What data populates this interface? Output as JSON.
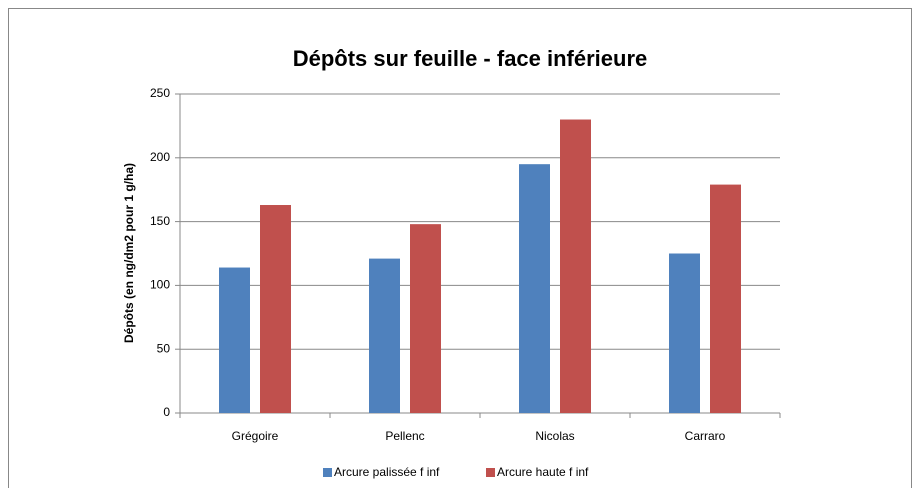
{
  "chart_data": {
    "type": "bar",
    "title": "Dépôts sur feuille - face inférieure",
    "y_label": "Dépôts (en ng/dm2 pour 1 g/ha)",
    "categories": [
      "Grégoire",
      "Pellenc",
      "Nicolas",
      "Carraro"
    ],
    "series": [
      {
        "name": "Arcure palissée f inf",
        "color": "#4f81bd",
        "values": [
          114,
          121,
          195,
          125
        ]
      },
      {
        "name": "Arcure haute f inf",
        "color": "#c0504d",
        "values": [
          163,
          148,
          230,
          179
        ]
      }
    ],
    "ylim": [
      0,
      250
    ],
    "yticks": [
      0,
      50,
      100,
      150,
      200,
      250
    ],
    "grid": true,
    "legend": "bottom"
  }
}
